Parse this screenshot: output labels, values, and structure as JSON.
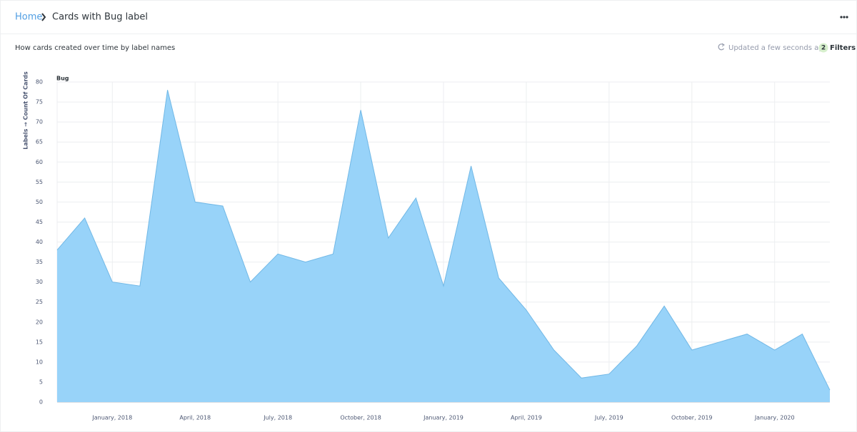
{
  "header": {
    "breadcrumb": [
      "Home",
      "Cards with Bug label"
    ],
    "subtitle": "How cards created over time by label names",
    "updated": "Updated a few seconds ago",
    "filter_count": "2",
    "filters": "Filters"
  },
  "chart_data": {
    "type": "area",
    "ylabel": "Labels → Count Of Cards",
    "x": [
      "2017-11",
      "2017-12",
      "2018-01",
      "2018-02",
      "2018-03",
      "2018-04",
      "2018-05",
      "2018-06",
      "2018-07",
      "2018-08",
      "2018-09",
      "2018-10",
      "2018-11",
      "2018-12",
      "2019-01",
      "2019-02",
      "2019-03",
      "2019-04",
      "2019-05",
      "2019-06",
      "2019-07",
      "2019-08",
      "2019-09",
      "2019-10",
      "2019-11",
      "2019-12",
      "2020-01",
      "2020-02",
      "2020-03"
    ],
    "series": [
      {
        "name": "Bug",
        "color": "#98d3f9",
        "values": [
          38,
          46,
          30,
          29,
          78,
          50,
          49,
          30,
          37,
          35,
          37,
          73,
          41,
          51,
          29,
          59,
          31,
          23,
          13,
          6,
          7,
          14,
          24,
          13,
          15,
          17,
          13,
          17,
          3
        ]
      }
    ],
    "xlim": [
      "2017-11",
      "2020-03"
    ],
    "xticks": [
      {
        "value": "2018-01",
        "label": "January, 2018"
      },
      {
        "value": "2018-04",
        "label": "April, 2018"
      },
      {
        "value": "2018-07",
        "label": "July, 2018"
      },
      {
        "value": "2018-10",
        "label": "October, 2018"
      },
      {
        "value": "2019-01",
        "label": "January, 2019"
      },
      {
        "value": "2019-04",
        "label": "April, 2019"
      },
      {
        "value": "2019-07",
        "label": "July, 2019"
      },
      {
        "value": "2019-10",
        "label": "October, 2019"
      },
      {
        "value": "2020-01",
        "label": "January, 2020"
      }
    ],
    "ylim": [
      0,
      80
    ],
    "yticks": [
      0,
      5,
      10,
      15,
      20,
      25,
      30,
      35,
      40,
      45,
      50,
      55,
      60,
      65,
      70,
      75,
      80
    ],
    "grid": true
  }
}
